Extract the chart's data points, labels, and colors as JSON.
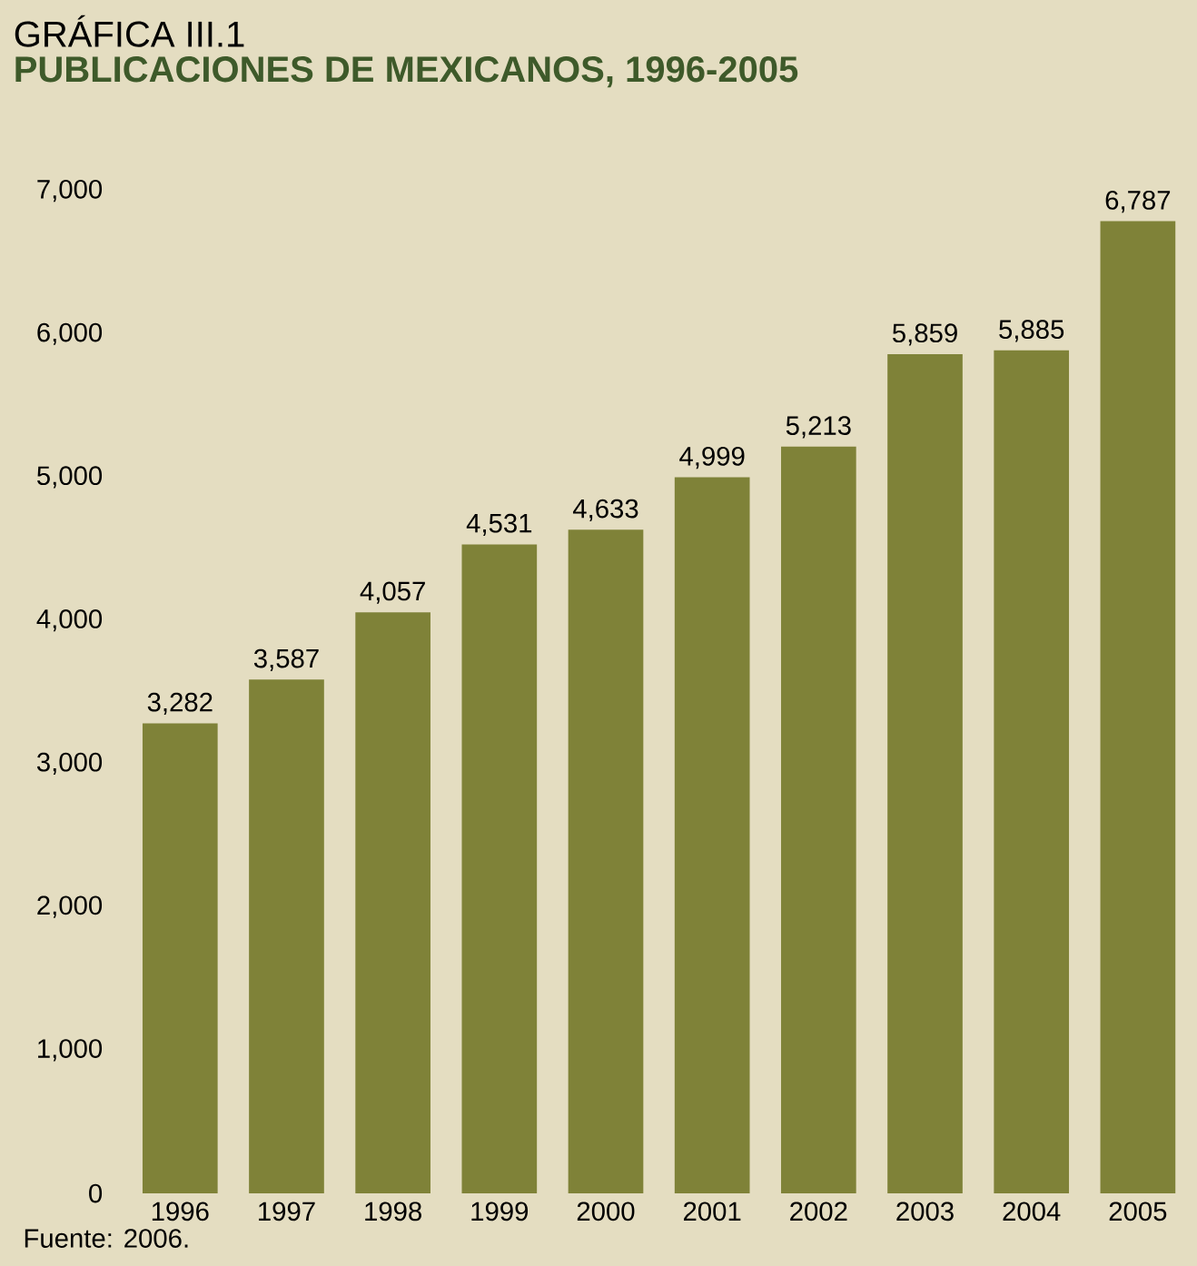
{
  "chart_data": {
    "type": "bar",
    "title": "GRÁFICA III.1",
    "subtitle": "PUBLICACIONES DE MEXICANOS, 1996-2005",
    "categories": [
      "1996",
      "1997",
      "1998",
      "1999",
      "2000",
      "2001",
      "2002",
      "2003",
      "2004",
      "2005"
    ],
    "values": [
      3282,
      3587,
      4057,
      4531,
      4633,
      4999,
      5213,
      5859,
      5885,
      6787
    ],
    "value_labels": [
      "3,282",
      "3,587",
      "4,057",
      "4,531",
      "4,633",
      "4,999",
      "5,213",
      "5,859",
      "5,885",
      "6,787"
    ],
    "color": "#7f8238",
    "ylim": [
      0,
      7000
    ],
    "yticks": [
      0,
      {
        "value": 1000,
        "label": "1,000"
      },
      {
        "value": 2000,
        "label": "2,000"
      },
      {
        "value": 3000,
        "label": "3,000"
      },
      {
        "value": 4000,
        "label": "4,000"
      },
      {
        "value": 5000,
        "label": "5,000"
      },
      {
        "value": 6000,
        "label": "6,000"
      },
      {
        "value": 7000,
        "label": "7,000"
      }
    ],
    "annotations": [
      "Fuente: 2006."
    ]
  }
}
